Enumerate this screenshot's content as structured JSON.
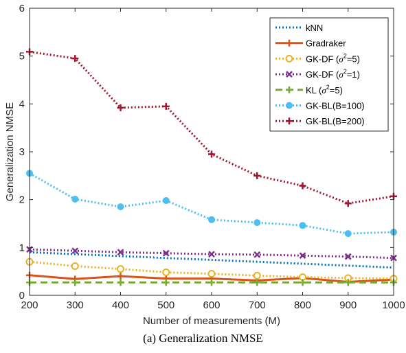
{
  "chart_data": {
    "type": "line",
    "xlabel": "Number of measurements (M)",
    "ylabel": "Generalization NMSE",
    "xlim": [
      200,
      1000
    ],
    "ylim": [
      0,
      6
    ],
    "xticks": [
      200,
      300,
      400,
      500,
      600,
      700,
      800,
      900,
      1000
    ],
    "yticks": [
      0,
      1,
      2,
      3,
      4,
      5,
      6
    ],
    "grid": false,
    "legend_position": "top-right",
    "x": [
      200,
      300,
      400,
      500,
      600,
      700,
      800,
      900,
      1000
    ],
    "series": [
      {
        "name": "kNN",
        "label_parts": [
          "kNN"
        ],
        "color": "#0072BD",
        "dash": "dot",
        "width": 3,
        "marker": "none",
        "values": [
          0.9,
          0.86,
          0.82,
          0.78,
          0.74,
          0.7,
          0.66,
          0.62,
          0.58
        ]
      },
      {
        "name": "Gradraker",
        "label_parts": [
          "Gradraker"
        ],
        "color": "#D95319",
        "dash": "solid",
        "width": 3,
        "marker": "plus",
        "values": [
          0.42,
          0.34,
          0.4,
          0.35,
          0.35,
          0.31,
          0.36,
          0.28,
          0.33
        ]
      },
      {
        "name": "GK-DF (σ2=5)",
        "label_parts": [
          "GK-DF (",
          "σ",
          "2",
          "=5)"
        ],
        "color": "#EDB120",
        "dash": "dot",
        "width": 3,
        "marker": "circle",
        "values": [
          0.7,
          0.61,
          0.55,
          0.48,
          0.45,
          0.41,
          0.38,
          0.36,
          0.35
        ]
      },
      {
        "name": "GK-DF (σ2=1)",
        "label_parts": [
          "GK-DF (",
          "σ",
          "2",
          "=1)"
        ],
        "color": "#7E2F8E",
        "dash": "dot",
        "width": 3,
        "marker": "x",
        "values": [
          0.96,
          0.93,
          0.9,
          0.88,
          0.86,
          0.85,
          0.83,
          0.81,
          0.78
        ]
      },
      {
        "name": "KL (σ2=5)",
        "label_parts": [
          "KL (",
          "σ",
          "2",
          "=5)"
        ],
        "color": "#77AC30",
        "dash": "dash",
        "width": 3,
        "marker": "plus",
        "values": [
          0.27,
          0.27,
          0.27,
          0.27,
          0.27,
          0.27,
          0.27,
          0.27,
          0.27
        ]
      },
      {
        "name": "GK-BL(B=100)",
        "label_parts": [
          "GK-BL(B=100)"
        ],
        "color": "#4DBEEE",
        "dash": "dot",
        "width": 3,
        "marker": "filled-circle",
        "values": [
          2.55,
          2.01,
          1.85,
          1.98,
          1.58,
          1.52,
          1.46,
          1.29,
          1.32
        ]
      },
      {
        "name": "GK-BL(B=200)",
        "label_parts": [
          "GK-BL(B=200)"
        ],
        "color": "#A2142F",
        "dash": "dot",
        "width": 3,
        "marker": "plus",
        "values": [
          5.09,
          4.95,
          3.92,
          3.95,
          2.95,
          2.5,
          2.29,
          1.92,
          2.07
        ]
      }
    ]
  },
  "caption": "(a) Generalization NMSE"
}
